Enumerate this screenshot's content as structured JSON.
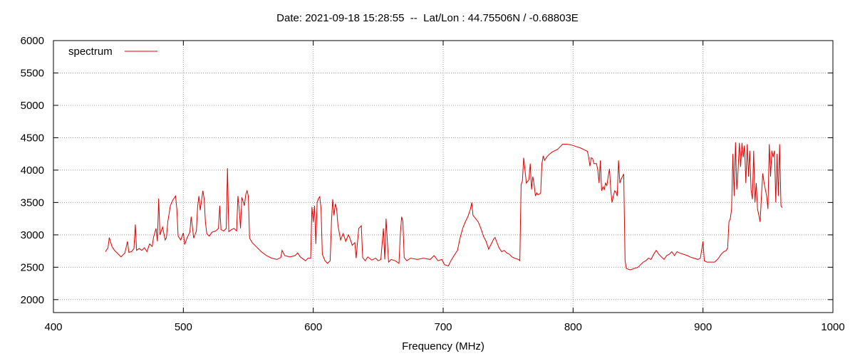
{
  "chart_data": {
    "type": "line",
    "title": "Date: 2021-09-18 15:28:55  --  Lat/Lon : 44.75506N / -0.68803E",
    "xlabel": "Frequency (MHz)",
    "ylabel": "",
    "xlim": [
      400,
      1000
    ],
    "ylim": [
      1800,
      6000
    ],
    "xticks": [
      400,
      500,
      600,
      700,
      800,
      900,
      1000
    ],
    "yticks": [
      2000,
      2500,
      3000,
      3500,
      4000,
      4500,
      5000,
      5500,
      6000
    ],
    "grid": true,
    "legend_position": "top-left",
    "series": [
      {
        "name": "spectrum",
        "color": "#dd0000",
        "points": [
          [
            440,
            2740
          ],
          [
            442,
            2800
          ],
          [
            443,
            2960
          ],
          [
            445,
            2820
          ],
          [
            447,
            2760
          ],
          [
            450,
            2700
          ],
          [
            452,
            2660
          ],
          [
            455,
            2720
          ],
          [
            457,
            2900
          ],
          [
            458,
            2730
          ],
          [
            460,
            2740
          ],
          [
            462,
            2790
          ],
          [
            463,
            3160
          ],
          [
            464,
            2760
          ],
          [
            466,
            2790
          ],
          [
            468,
            2760
          ],
          [
            470,
            2800
          ],
          [
            472,
            2740
          ],
          [
            474,
            2860
          ],
          [
            476,
            2820
          ],
          [
            477,
            2960
          ],
          [
            479,
            3100
          ],
          [
            480,
            2900
          ],
          [
            481,
            3560
          ],
          [
            482,
            3000
          ],
          [
            484,
            3120
          ],
          [
            486,
            2920
          ],
          [
            487,
            2960
          ],
          [
            488,
            3200
          ],
          [
            490,
            3450
          ],
          [
            492,
            3540
          ],
          [
            494,
            3600
          ],
          [
            495,
            3400
          ],
          [
            496,
            2980
          ],
          [
            498,
            2920
          ],
          [
            500,
            3030
          ],
          [
            501,
            2850
          ],
          [
            503,
            2960
          ],
          [
            505,
            3040
          ],
          [
            506,
            3280
          ],
          [
            508,
            2950
          ],
          [
            510,
            3060
          ],
          [
            511,
            3440
          ],
          [
            512,
            3600
          ],
          [
            513,
            3380
          ],
          [
            515,
            3680
          ],
          [
            516,
            3560
          ],
          [
            517,
            3200
          ],
          [
            518,
            3020
          ],
          [
            520,
            2980
          ],
          [
            522,
            3040
          ],
          [
            525,
            3060
          ],
          [
            527,
            3100
          ],
          [
            528,
            3450
          ],
          [
            529,
            3080
          ],
          [
            531,
            3060
          ],
          [
            533,
            3100
          ],
          [
            534,
            4030
          ],
          [
            535,
            3050
          ],
          [
            537,
            3080
          ],
          [
            539,
            3100
          ],
          [
            541,
            3060
          ],
          [
            542,
            3600
          ],
          [
            543,
            3400
          ],
          [
            544,
            3100
          ],
          [
            545,
            3580
          ],
          [
            547,
            3450
          ],
          [
            548,
            3620
          ],
          [
            549,
            3680
          ],
          [
            550,
            3600
          ],
          [
            551,
            2950
          ],
          [
            553,
            2880
          ],
          [
            556,
            2820
          ],
          [
            560,
            2740
          ],
          [
            564,
            2680
          ],
          [
            568,
            2640
          ],
          [
            572,
            2620
          ],
          [
            575,
            2650
          ],
          [
            576,
            2760
          ],
          [
            578,
            2680
          ],
          [
            582,
            2660
          ],
          [
            586,
            2680
          ],
          [
            588,
            2720
          ],
          [
            590,
            2660
          ],
          [
            594,
            2600
          ],
          [
            596,
            2640
          ],
          [
            598,
            2640
          ],
          [
            599,
            3430
          ],
          [
            600,
            3200
          ],
          [
            601,
            3450
          ],
          [
            602,
            2860
          ],
          [
            603,
            3500
          ],
          [
            604,
            3560
          ],
          [
            605,
            3590
          ],
          [
            606,
            3400
          ],
          [
            607,
            2700
          ],
          [
            609,
            2600
          ],
          [
            611,
            2560
          ],
          [
            613,
            2600
          ],
          [
            614,
            3200
          ],
          [
            615,
            3550
          ],
          [
            616,
            3300
          ],
          [
            617,
            3480
          ],
          [
            618,
            3400
          ],
          [
            619,
            3150
          ],
          [
            621,
            2920
          ],
          [
            623,
            3020
          ],
          [
            625,
            2900
          ],
          [
            627,
            3000
          ],
          [
            628,
            2960
          ],
          [
            630,
            2840
          ],
          [
            632,
            2880
          ],
          [
            633,
            2640
          ],
          [
            635,
            3100
          ],
          [
            637,
            3140
          ],
          [
            638,
            2650
          ],
          [
            640,
            2600
          ],
          [
            642,
            2660
          ],
          [
            645,
            2610
          ],
          [
            648,
            2640
          ],
          [
            650,
            2600
          ],
          [
            652,
            2620
          ],
          [
            654,
            3100
          ],
          [
            655,
            2620
          ],
          [
            656,
            3250
          ],
          [
            658,
            2580
          ],
          [
            660,
            2620
          ],
          [
            663,
            2600
          ],
          [
            666,
            2560
          ],
          [
            667,
            3000
          ],
          [
            668,
            3280
          ],
          [
            669,
            3200
          ],
          [
            670,
            2650
          ],
          [
            672,
            2600
          ],
          [
            675,
            2640
          ],
          [
            680,
            2620
          ],
          [
            685,
            2640
          ],
          [
            690,
            2620
          ],
          [
            693,
            2680
          ],
          [
            696,
            2600
          ],
          [
            699,
            2620
          ],
          [
            701,
            2540
          ],
          [
            704,
            2520
          ],
          [
            706,
            2600
          ],
          [
            709,
            2700
          ],
          [
            711,
            2760
          ],
          [
            713,
            2950
          ],
          [
            715,
            3100
          ],
          [
            717,
            3200
          ],
          [
            719,
            3280
          ],
          [
            721,
            3400
          ],
          [
            722,
            3500
          ],
          [
            723,
            3300
          ],
          [
            725,
            3250
          ],
          [
            727,
            3200
          ],
          [
            729,
            3100
          ],
          [
            731,
            2980
          ],
          [
            733,
            2900
          ],
          [
            735,
            2780
          ],
          [
            737,
            2860
          ],
          [
            739,
            2940
          ],
          [
            740,
            2960
          ],
          [
            741,
            2900
          ],
          [
            743,
            2800
          ],
          [
            745,
            2740
          ],
          [
            747,
            2760
          ],
          [
            749,
            2720
          ],
          [
            751,
            2700
          ],
          [
            753,
            2660
          ],
          [
            755,
            2640
          ],
          [
            758,
            2620
          ],
          [
            759,
            2600
          ],
          [
            760,
            3780
          ],
          [
            761,
            3830
          ],
          [
            762,
            4190
          ],
          [
            763,
            4000
          ],
          [
            764,
            3800
          ],
          [
            766,
            3850
          ],
          [
            767,
            4100
          ],
          [
            768,
            3700
          ],
          [
            769,
            3900
          ],
          [
            770,
            3780
          ],
          [
            771,
            3600
          ],
          [
            772,
            3650
          ],
          [
            773,
            3620
          ],
          [
            775,
            3640
          ],
          [
            776,
            4100
          ],
          [
            777,
            4220
          ],
          [
            778,
            4150
          ],
          [
            780,
            4210
          ],
          [
            782,
            4250
          ],
          [
            784,
            4280
          ],
          [
            786,
            4300
          ],
          [
            788,
            4320
          ],
          [
            790,
            4360
          ],
          [
            792,
            4400
          ],
          [
            795,
            4400
          ],
          [
            798,
            4390
          ],
          [
            800,
            4380
          ],
          [
            803,
            4360
          ],
          [
            806,
            4340
          ],
          [
            808,
            4320
          ],
          [
            811,
            4290
          ],
          [
            812,
            4200
          ],
          [
            813,
            4060
          ],
          [
            814,
            4190
          ],
          [
            815,
            4180
          ],
          [
            816,
            4100
          ],
          [
            818,
            4100
          ],
          [
            819,
            4000
          ],
          [
            820,
            3800
          ],
          [
            821,
            4150
          ],
          [
            822,
            3680
          ],
          [
            823,
            3740
          ],
          [
            824,
            3700
          ],
          [
            825,
            3800
          ],
          [
            826,
            3760
          ],
          [
            827,
            3900
          ],
          [
            828,
            4020
          ],
          [
            829,
            3700
          ],
          [
            830,
            3500
          ],
          [
            831,
            3600
          ],
          [
            832,
            3680
          ],
          [
            833,
            3660
          ],
          [
            834,
            3600
          ],
          [
            835,
            4150
          ],
          [
            836,
            3800
          ],
          [
            837,
            3860
          ],
          [
            838,
            3900
          ],
          [
            839,
            3940
          ],
          [
            840,
            2600
          ],
          [
            841,
            2480
          ],
          [
            844,
            2460
          ],
          [
            847,
            2480
          ],
          [
            850,
            2500
          ],
          [
            852,
            2540
          ],
          [
            854,
            2580
          ],
          [
            856,
            2600
          ],
          [
            858,
            2640
          ],
          [
            860,
            2620
          ],
          [
            862,
            2700
          ],
          [
            864,
            2760
          ],
          [
            866,
            2700
          ],
          [
            868,
            2660
          ],
          [
            870,
            2620
          ],
          [
            872,
            2680
          ],
          [
            874,
            2700
          ],
          [
            876,
            2740
          ],
          [
            878,
            2680
          ],
          [
            880,
            2740
          ],
          [
            882,
            2720
          ],
          [
            885,
            2700
          ],
          [
            888,
            2680
          ],
          [
            890,
            2660
          ],
          [
            893,
            2640
          ],
          [
            896,
            2620
          ],
          [
            898,
            2640
          ],
          [
            900,
            2900
          ],
          [
            901,
            2600
          ],
          [
            903,
            2580
          ],
          [
            906,
            2580
          ],
          [
            909,
            2580
          ],
          [
            912,
            2640
          ],
          [
            914,
            2700
          ],
          [
            916,
            2740
          ],
          [
            918,
            2760
          ],
          [
            919,
            2800
          ],
          [
            920,
            3200
          ],
          [
            921,
            3250
          ],
          [
            922,
            3400
          ],
          [
            923,
            4250
          ],
          [
            924,
            3600
          ],
          [
            925,
            4430
          ],
          [
            926,
            3700
          ],
          [
            927,
            4000
          ],
          [
            928,
            4420
          ],
          [
            929,
            4050
          ],
          [
            930,
            4420
          ],
          [
            931,
            4200
          ],
          [
            932,
            4380
          ],
          [
            933,
            3800
          ],
          [
            934,
            4400
          ],
          [
            935,
            3900
          ],
          [
            936,
            4300
          ],
          [
            937,
            3700
          ],
          [
            938,
            3550
          ],
          [
            939,
            4300
          ],
          [
            940,
            3500
          ],
          [
            941,
            3800
          ],
          [
            942,
            3400
          ],
          [
            943,
            3300
          ],
          [
            944,
            3200
          ],
          [
            945,
            3600
          ],
          [
            946,
            3950
          ],
          [
            947,
            3800
          ],
          [
            948,
            3700
          ],
          [
            949,
            3600
          ],
          [
            950,
            3400
          ],
          [
            951,
            4400
          ],
          [
            952,
            3900
          ],
          [
            953,
            4300
          ],
          [
            954,
            4200
          ],
          [
            955,
            4300
          ],
          [
            956,
            3500
          ],
          [
            957,
            4250
          ],
          [
            958,
            3600
          ],
          [
            959,
            4400
          ],
          [
            960,
            3450
          ],
          [
            961,
            3420
          ]
        ]
      }
    ]
  }
}
